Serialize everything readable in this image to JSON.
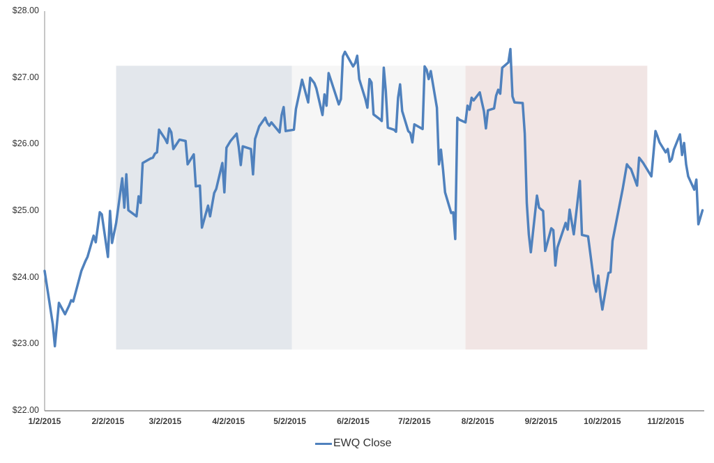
{
  "chart_data": {
    "type": "line",
    "title": "",
    "xlabel": "",
    "ylabel": "",
    "ylim": [
      22,
      28
    ],
    "y_ticks": [
      "$22.00",
      "$23.00",
      "$24.00",
      "$25.00",
      "$26.00",
      "$27.00",
      "$28.00"
    ],
    "x_ticks": [
      "1/2/2015",
      "2/2/2015",
      "3/2/2015",
      "4/2/2015",
      "5/2/2015",
      "6/2/2015",
      "7/2/2015",
      "8/2/2015",
      "9/2/2015",
      "10/2/2015",
      "11/2/2015"
    ],
    "grid": false,
    "legend_position": "bottom",
    "background_bands": [
      {
        "name": "french-flag-blue",
        "x_start": "2/6/2015",
        "x_end": "5/3/2015",
        "y_range": [
          22.92,
          27.18
        ],
        "color": "#e3e7ec"
      },
      {
        "name": "french-flag-white",
        "x_start": "5/3/2015",
        "x_end": "7/27/2015",
        "y_range": [
          22.92,
          27.18
        ],
        "color": "#f6f6f6"
      },
      {
        "name": "french-flag-red",
        "x_start": "7/27/2015",
        "x_end": "10/24/2015",
        "y_range": [
          22.92,
          27.18
        ],
        "color": "#f1e5e4"
      }
    ],
    "series": [
      {
        "name": "EWQ Close",
        "color": "#4f81bd",
        "points": [
          [
            "1/2/2015",
            24.1
          ],
          [
            "1/6/2015",
            23.3
          ],
          [
            "1/7/2015",
            22.97
          ],
          [
            "1/9/2015",
            23.62
          ],
          [
            "1/12/2015",
            23.45
          ],
          [
            "1/14/2015",
            23.58
          ],
          [
            "1/15/2015",
            23.66
          ],
          [
            "1/16/2015",
            23.64
          ],
          [
            "1/20/2015",
            24.1
          ],
          [
            "1/22/2015",
            24.25
          ],
          [
            "1/23/2015",
            24.31
          ],
          [
            "1/26/2015",
            24.63
          ],
          [
            "1/27/2015",
            24.53
          ],
          [
            "1/29/2015",
            24.98
          ],
          [
            "1/30/2015",
            24.95
          ],
          [
            "2/2/2015",
            24.31
          ],
          [
            "2/3/2015",
            25.0
          ],
          [
            "2/4/2015",
            24.52
          ],
          [
            "2/6/2015",
            24.82
          ],
          [
            "2/9/2015",
            25.49
          ],
          [
            "2/10/2015",
            25.05
          ],
          [
            "2/11/2015",
            25.55
          ],
          [
            "2/12/2015",
            25.01
          ],
          [
            "2/16/2015",
            24.92
          ],
          [
            "2/17/2015",
            25.22
          ],
          [
            "2/18/2015",
            25.12
          ],
          [
            "2/19/2015",
            25.72
          ],
          [
            "2/23/2015",
            25.79
          ],
          [
            "2/24/2015",
            25.8
          ],
          [
            "2/25/2015",
            25.86
          ],
          [
            "2/26/2015",
            25.88
          ],
          [
            "2/27/2015",
            26.22
          ],
          [
            "3/2/2015",
            26.08
          ],
          [
            "3/3/2015",
            26.02
          ],
          [
            "3/4/2015",
            26.24
          ],
          [
            "3/5/2015",
            26.18
          ],
          [
            "3/6/2015",
            25.93
          ],
          [
            "3/9/2015",
            26.07
          ],
          [
            "3/12/2015",
            26.05
          ],
          [
            "3/13/2015",
            25.7
          ],
          [
            "3/16/2015",
            25.85
          ],
          [
            "3/17/2015",
            25.37
          ],
          [
            "3/19/2015",
            25.38
          ],
          [
            "3/20/2015",
            24.75
          ],
          [
            "3/23/2015",
            25.08
          ],
          [
            "3/24/2015",
            24.92
          ],
          [
            "3/26/2015",
            25.27
          ],
          [
            "3/27/2015",
            25.33
          ],
          [
            "3/30/2015",
            25.72
          ],
          [
            "3/31/2015",
            25.28
          ],
          [
            "4/1/2015",
            25.95
          ],
          [
            "4/3/2015",
            26.05
          ],
          [
            "4/6/2015",
            26.16
          ],
          [
            "4/7/2015",
            25.96
          ],
          [
            "4/8/2015",
            25.69
          ],
          [
            "4/9/2015",
            25.97
          ],
          [
            "4/13/2015",
            25.93
          ],
          [
            "4/14/2015",
            25.55
          ],
          [
            "4/15/2015",
            26.08
          ],
          [
            "4/17/2015",
            26.27
          ],
          [
            "4/20/2015",
            26.4
          ],
          [
            "4/21/2015",
            26.32
          ],
          [
            "4/22/2015",
            26.28
          ],
          [
            "4/23/2015",
            26.33
          ],
          [
            "4/27/2015",
            26.18
          ],
          [
            "4/28/2015",
            26.44
          ],
          [
            "4/29/2015",
            26.56
          ],
          [
            "4/30/2015",
            26.2
          ],
          [
            "5/4/2015",
            26.22
          ],
          [
            "5/5/2015",
            26.53
          ],
          [
            "5/7/2015",
            26.82
          ],
          [
            "5/8/2015",
            26.97
          ],
          [
            "5/11/2015",
            26.63
          ],
          [
            "5/12/2015",
            27.0
          ],
          [
            "5/14/2015",
            26.92
          ],
          [
            "5/15/2015",
            26.84
          ],
          [
            "5/18/2015",
            26.44
          ],
          [
            "5/19/2015",
            26.75
          ],
          [
            "5/20/2015",
            26.58
          ],
          [
            "5/21/2015",
            27.07
          ],
          [
            "5/26/2015",
            26.6
          ],
          [
            "5/27/2015",
            26.68
          ],
          [
            "5/28/2015",
            27.32
          ],
          [
            "5/29/2015",
            27.39
          ],
          [
            "6/2/2015",
            27.17
          ],
          [
            "6/3/2015",
            27.22
          ],
          [
            "6/4/2015",
            27.33
          ],
          [
            "6/5/2015",
            26.98
          ],
          [
            "6/8/2015",
            26.68
          ],
          [
            "6/9/2015",
            26.55
          ],
          [
            "6/10/2015",
            26.98
          ],
          [
            "6/11/2015",
            26.93
          ],
          [
            "6/12/2015",
            26.45
          ],
          [
            "6/15/2015",
            26.38
          ],
          [
            "6/16/2015",
            26.35
          ],
          [
            "6/17/2015",
            27.15
          ],
          [
            "6/18/2015",
            26.8
          ],
          [
            "6/19/2015",
            26.25
          ],
          [
            "6/22/2015",
            26.22
          ],
          [
            "6/23/2015",
            26.19
          ],
          [
            "6/24/2015",
            26.7
          ],
          [
            "6/25/2015",
            26.9
          ],
          [
            "6/26/2015",
            26.5
          ],
          [
            "6/29/2015",
            26.2
          ],
          [
            "6/30/2015",
            26.17
          ],
          [
            "7/1/2015",
            26.03
          ],
          [
            "7/2/2015",
            26.3
          ],
          [
            "7/6/2015",
            26.23
          ],
          [
            "7/7/2015",
            27.17
          ],
          [
            "7/8/2015",
            27.12
          ],
          [
            "7/9/2015",
            26.98
          ],
          [
            "7/10/2015",
            27.1
          ],
          [
            "7/13/2015",
            26.55
          ],
          [
            "7/14/2015",
            25.7
          ],
          [
            "7/15/2015",
            25.92
          ],
          [
            "7/16/2015",
            25.62
          ],
          [
            "7/17/2015",
            25.28
          ],
          [
            "7/20/2015",
            24.97
          ],
          [
            "7/21/2015",
            24.98
          ],
          [
            "7/22/2015",
            24.58
          ],
          [
            "7/23/2015",
            26.4
          ],
          [
            "7/24/2015",
            26.37
          ],
          [
            "7/27/2015",
            26.33
          ],
          [
            "7/28/2015",
            26.58
          ],
          [
            "7/29/2015",
            26.52
          ],
          [
            "7/30/2015",
            26.7
          ],
          [
            "7/31/2015",
            26.66
          ],
          [
            "8/3/2015",
            26.78
          ],
          [
            "8/4/2015",
            26.64
          ],
          [
            "8/5/2015",
            26.5
          ],
          [
            "8/6/2015",
            26.24
          ],
          [
            "8/7/2015",
            26.51
          ],
          [
            "8/10/2015",
            26.54
          ],
          [
            "8/11/2015",
            26.73
          ],
          [
            "8/12/2015",
            26.82
          ],
          [
            "8/13/2015",
            26.76
          ],
          [
            "8/14/2015",
            27.15
          ],
          [
            "8/17/2015",
            27.23
          ],
          [
            "8/18/2015",
            27.43
          ],
          [
            "8/19/2015",
            26.72
          ],
          [
            "8/20/2015",
            26.63
          ],
          [
            "8/24/2015",
            26.62
          ],
          [
            "8/25/2015",
            26.16
          ],
          [
            "8/26/2015",
            25.12
          ],
          [
            "8/27/2015",
            24.65
          ],
          [
            "8/28/2015",
            24.38
          ],
          [
            "8/31/2015",
            25.23
          ],
          [
            "9/1/2015",
            25.05
          ],
          [
            "9/3/2015",
            25.0
          ],
          [
            "9/4/2015",
            24.4
          ],
          [
            "9/7/2015",
            24.74
          ],
          [
            "9/8/2015",
            24.71
          ],
          [
            "9/9/2015",
            24.18
          ],
          [
            "9/10/2015",
            24.45
          ],
          [
            "9/14/2015",
            24.82
          ],
          [
            "9/15/2015",
            24.72
          ],
          [
            "9/16/2015",
            25.02
          ],
          [
            "9/18/2015",
            24.65
          ],
          [
            "9/21/2015",
            25.45
          ],
          [
            "9/22/2015",
            24.64
          ],
          [
            "9/25/2015",
            24.62
          ],
          [
            "9/28/2015",
            23.91
          ],
          [
            "9/29/2015",
            23.79
          ],
          [
            "9/30/2015",
            24.03
          ],
          [
            "10/1/2015",
            23.72
          ],
          [
            "10/2/2015",
            23.52
          ],
          [
            "10/5/2015",
            24.07
          ],
          [
            "10/6/2015",
            24.08
          ],
          [
            "10/7/2015",
            24.55
          ],
          [
            "10/12/2015",
            25.34
          ],
          [
            "10/14/2015",
            25.7
          ],
          [
            "10/15/2015",
            25.66
          ],
          [
            "10/16/2015",
            25.63
          ],
          [
            "10/19/2015",
            25.38
          ],
          [
            "10/20/2015",
            25.8
          ],
          [
            "10/22/2015",
            25.72
          ],
          [
            "10/23/2015",
            25.67
          ],
          [
            "10/26/2015",
            25.52
          ],
          [
            "10/28/2015",
            26.2
          ],
          [
            "10/29/2015",
            26.12
          ],
          [
            "10/30/2015",
            26.03
          ],
          [
            "11/2/2015",
            25.88
          ],
          [
            "11/3/2015",
            25.93
          ],
          [
            "11/4/2015",
            25.74
          ],
          [
            "11/5/2015",
            25.78
          ],
          [
            "11/6/2015",
            25.92
          ],
          [
            "11/9/2015",
            26.15
          ],
          [
            "11/10/2015",
            25.84
          ],
          [
            "11/11/2015",
            26.02
          ],
          [
            "11/12/2015",
            25.7
          ],
          [
            "11/13/2015",
            25.52
          ],
          [
            "11/16/2015",
            25.32
          ],
          [
            "11/17/2015",
            25.47
          ],
          [
            "11/18/2015",
            24.8
          ],
          [
            "11/20/2015",
            25.01
          ]
        ]
      }
    ]
  },
  "legend": {
    "label": "EWQ Close"
  }
}
